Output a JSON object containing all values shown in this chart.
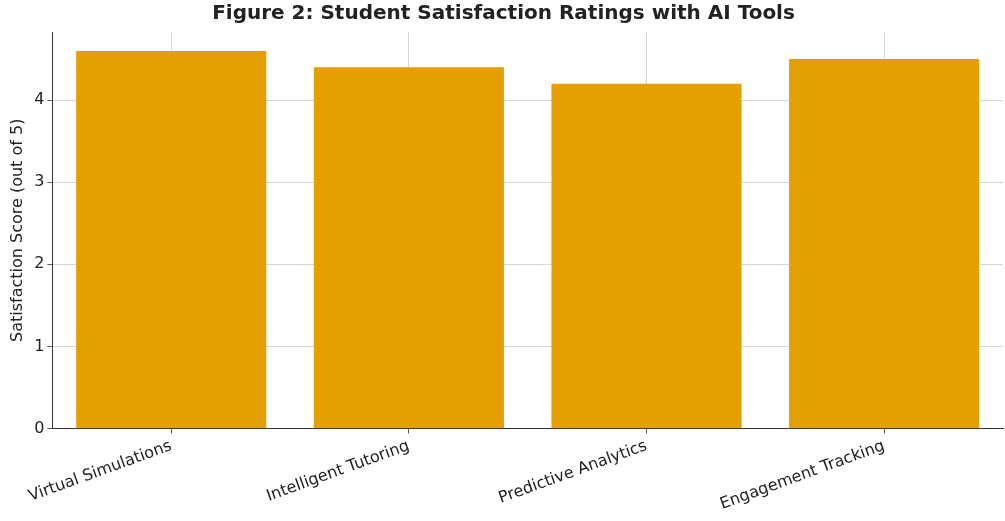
{
  "chart_data": {
    "type": "bar",
    "title": "Figure 2: Student Satisfaction Ratings with AI Tools",
    "ylabel": "Satisfaction Score (out of 5)",
    "categories": [
      "Virtual Simulations",
      "Intelligent Tutoring",
      "Predictive Analytics",
      "Engagement Tracking"
    ],
    "values": [
      4.6,
      4.4,
      4.2,
      4.5
    ],
    "color": "#e69f00",
    "ylim": [
      0,
      4.83
    ],
    "yticks": [
      0,
      1,
      2,
      3,
      4
    ],
    "grid": true
  }
}
